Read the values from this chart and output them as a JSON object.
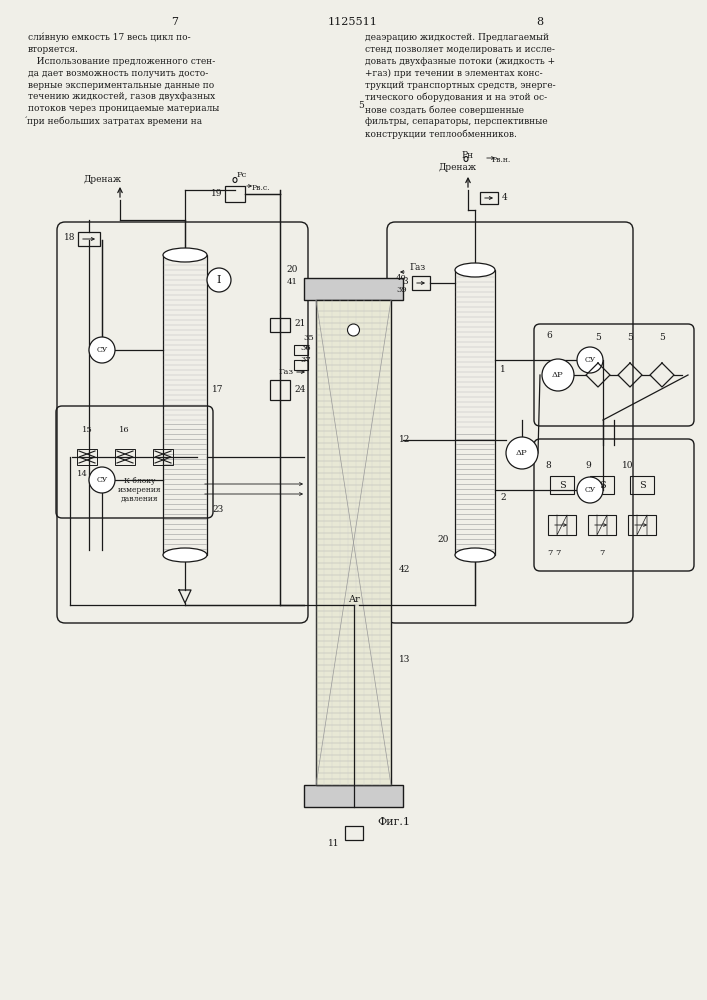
{
  "bg_color": "#f0efe8",
  "line_color": "#1a1a1a",
  "text_color": "#1a1a1a",
  "title": "Фиг.1",
  "page_left": "7",
  "page_center": "1125511",
  "page_right": "8",
  "text_left_1": "сли́вную емкость 17 весь цикл по-\nвторяется.",
  "text_left_2": "   Использование предложенного стен-\nда дает возможность получить досто-\nверные экспериментальные данные по\nтечению жидкостей, газов двухфазных\nпотоков через проницаемые материалы\ńпри небольших затратах времени на",
  "text_right": "деаэрацию жидкостей. Предлагаемый\nстенд позволяет моделировать и иссле-\nдовать двухфазные потоки (жидкость +\n+газ) при течении в элементах конс-\nтрукций транспортных средств, энерге-\nтического оборудования и на этой ос-\nнове создать более совершенные\nфильтры, сепараторы, перспективные\nконструкции теплообменников."
}
